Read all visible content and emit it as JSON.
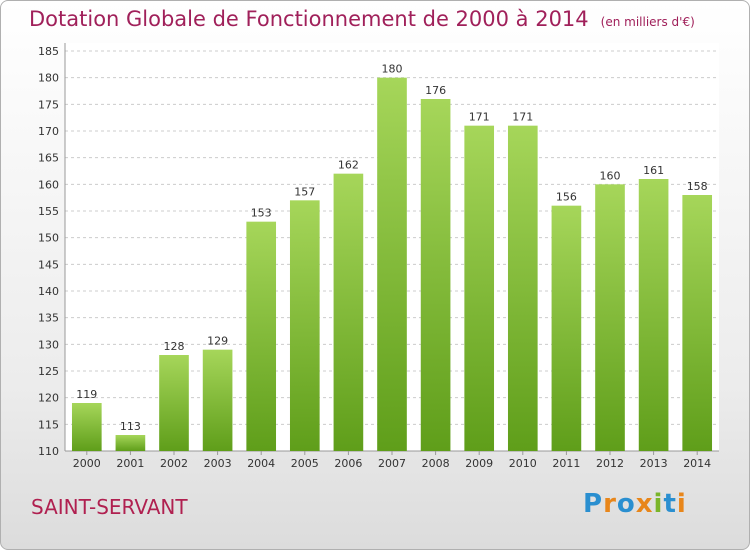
{
  "title": "Dotation Globale de Fonctionnement de 2000 à 2014",
  "unit_note": "(en milliers d'€)",
  "place": "SAINT-SERVANT",
  "logo": {
    "text": "Proxiti",
    "letters": [
      "P",
      "r",
      "o",
      "x",
      "i",
      "t",
      "i"
    ],
    "colors": [
      "#2a8fd0",
      "#e8861a",
      "#2a8fd0",
      "#e8861a",
      "#7ab52a",
      "#2a8fd0",
      "#e8861a"
    ]
  },
  "colors": {
    "bar_light": "#a6d65a",
    "bar_dark": "#5f9e1a",
    "title": "#a0205a",
    "grid": "#cccccc"
  },
  "chart_data": {
    "type": "bar",
    "categories": [
      "2000",
      "2001",
      "2002",
      "2003",
      "2004",
      "2005",
      "2006",
      "2007",
      "2008",
      "2009",
      "2010",
      "2011",
      "2012",
      "2013",
      "2014"
    ],
    "values": [
      119,
      113,
      128,
      129,
      153,
      157,
      162,
      180,
      176,
      171,
      171,
      156,
      160,
      161,
      158
    ],
    "ylim": [
      110,
      185
    ],
    "yticks": [
      110,
      115,
      120,
      125,
      130,
      135,
      140,
      145,
      150,
      155,
      160,
      165,
      170,
      175,
      180,
      185
    ],
    "grid": true,
    "legend": false
  }
}
